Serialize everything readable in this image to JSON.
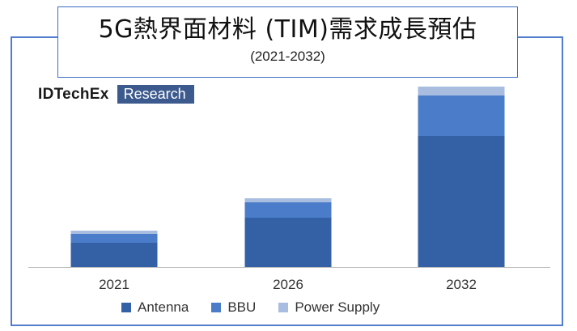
{
  "header": {
    "title": "5G熱界面材料 (TIM)需求成長預估",
    "subtitle": "(2021-2032)"
  },
  "logo": {
    "main_text": "IDTechEx",
    "sub_text": "Research"
  },
  "colors": {
    "antenna": "#3460a6",
    "bbu": "#4a7cc9",
    "power_supply": "#a9bde0",
    "frame": "#4f7ccc",
    "axis": "#c0c0c0"
  },
  "chart_data": {
    "type": "bar",
    "stacked": true,
    "categories": [
      "2021",
      "2026",
      "2032"
    ],
    "series": [
      {
        "name": "Antenna",
        "values": [
          30,
          61,
          162
        ]
      },
      {
        "name": "BBU",
        "values": [
          11,
          19,
          50
        ]
      },
      {
        "name": "Power Supply",
        "values": [
          4,
          5,
          11
        ]
      }
    ],
    "title": "5G熱界面材料 (TIM)需求成長預估",
    "subtitle": "(2021-2032)",
    "xlabel": "",
    "ylabel": "",
    "ylim": [
      0,
      223
    ],
    "grid": false,
    "legend_position": "bottom"
  }
}
